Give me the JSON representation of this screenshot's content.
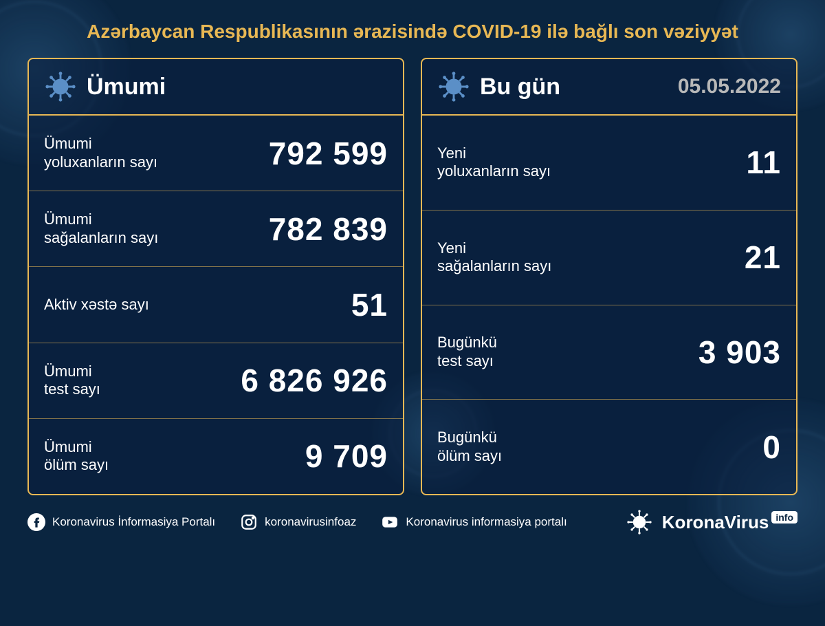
{
  "title": "Azərbaycan Respublikasının ərazisində COVID-19 ilə bağlı son vəziyyət",
  "colors": {
    "background": "#0a2540",
    "accent": "#e8b854",
    "text": "#ffffff",
    "muted": "#b8b8b8",
    "panel_bg": "rgba(10,30,60,0.55)"
  },
  "typography": {
    "title_fontsize": 28,
    "panel_title_fontsize": 34,
    "date_fontsize": 30,
    "label_fontsize": 22,
    "value_fontsize": 46,
    "font_family": "Arial"
  },
  "left_panel": {
    "title": "Ümumi",
    "rows": [
      {
        "label": "Ümumi\nyoluxanların sayı",
        "value": "792 599"
      },
      {
        "label": "Ümumi\nsağalanların sayı",
        "value": "782 839"
      },
      {
        "label": "Aktiv xəstə sayı",
        "value": "51"
      },
      {
        "label": "Ümumi\ntest sayı",
        "value": "6 826 926"
      },
      {
        "label": "Ümumi\nölüm sayı",
        "value": "9 709"
      }
    ]
  },
  "right_panel": {
    "title": "Bu gün",
    "date": "05.05.2022",
    "rows": [
      {
        "label": "Yeni\nyoluxanların sayı",
        "value": "11"
      },
      {
        "label": "Yeni\nsağalanların sayı",
        "value": "21"
      },
      {
        "label": "Bugünkü\ntest sayı",
        "value": "3 903"
      },
      {
        "label": "Bugünkü\nölüm sayı",
        "value": "0"
      }
    ]
  },
  "footer": {
    "facebook": "Koronavirus İnformasiya Portalı",
    "instagram": "koronavirusinfoaz",
    "youtube": "Koronavirus informasiya portalı",
    "logo_text": "KoronaVirus",
    "logo_badge": "info"
  }
}
